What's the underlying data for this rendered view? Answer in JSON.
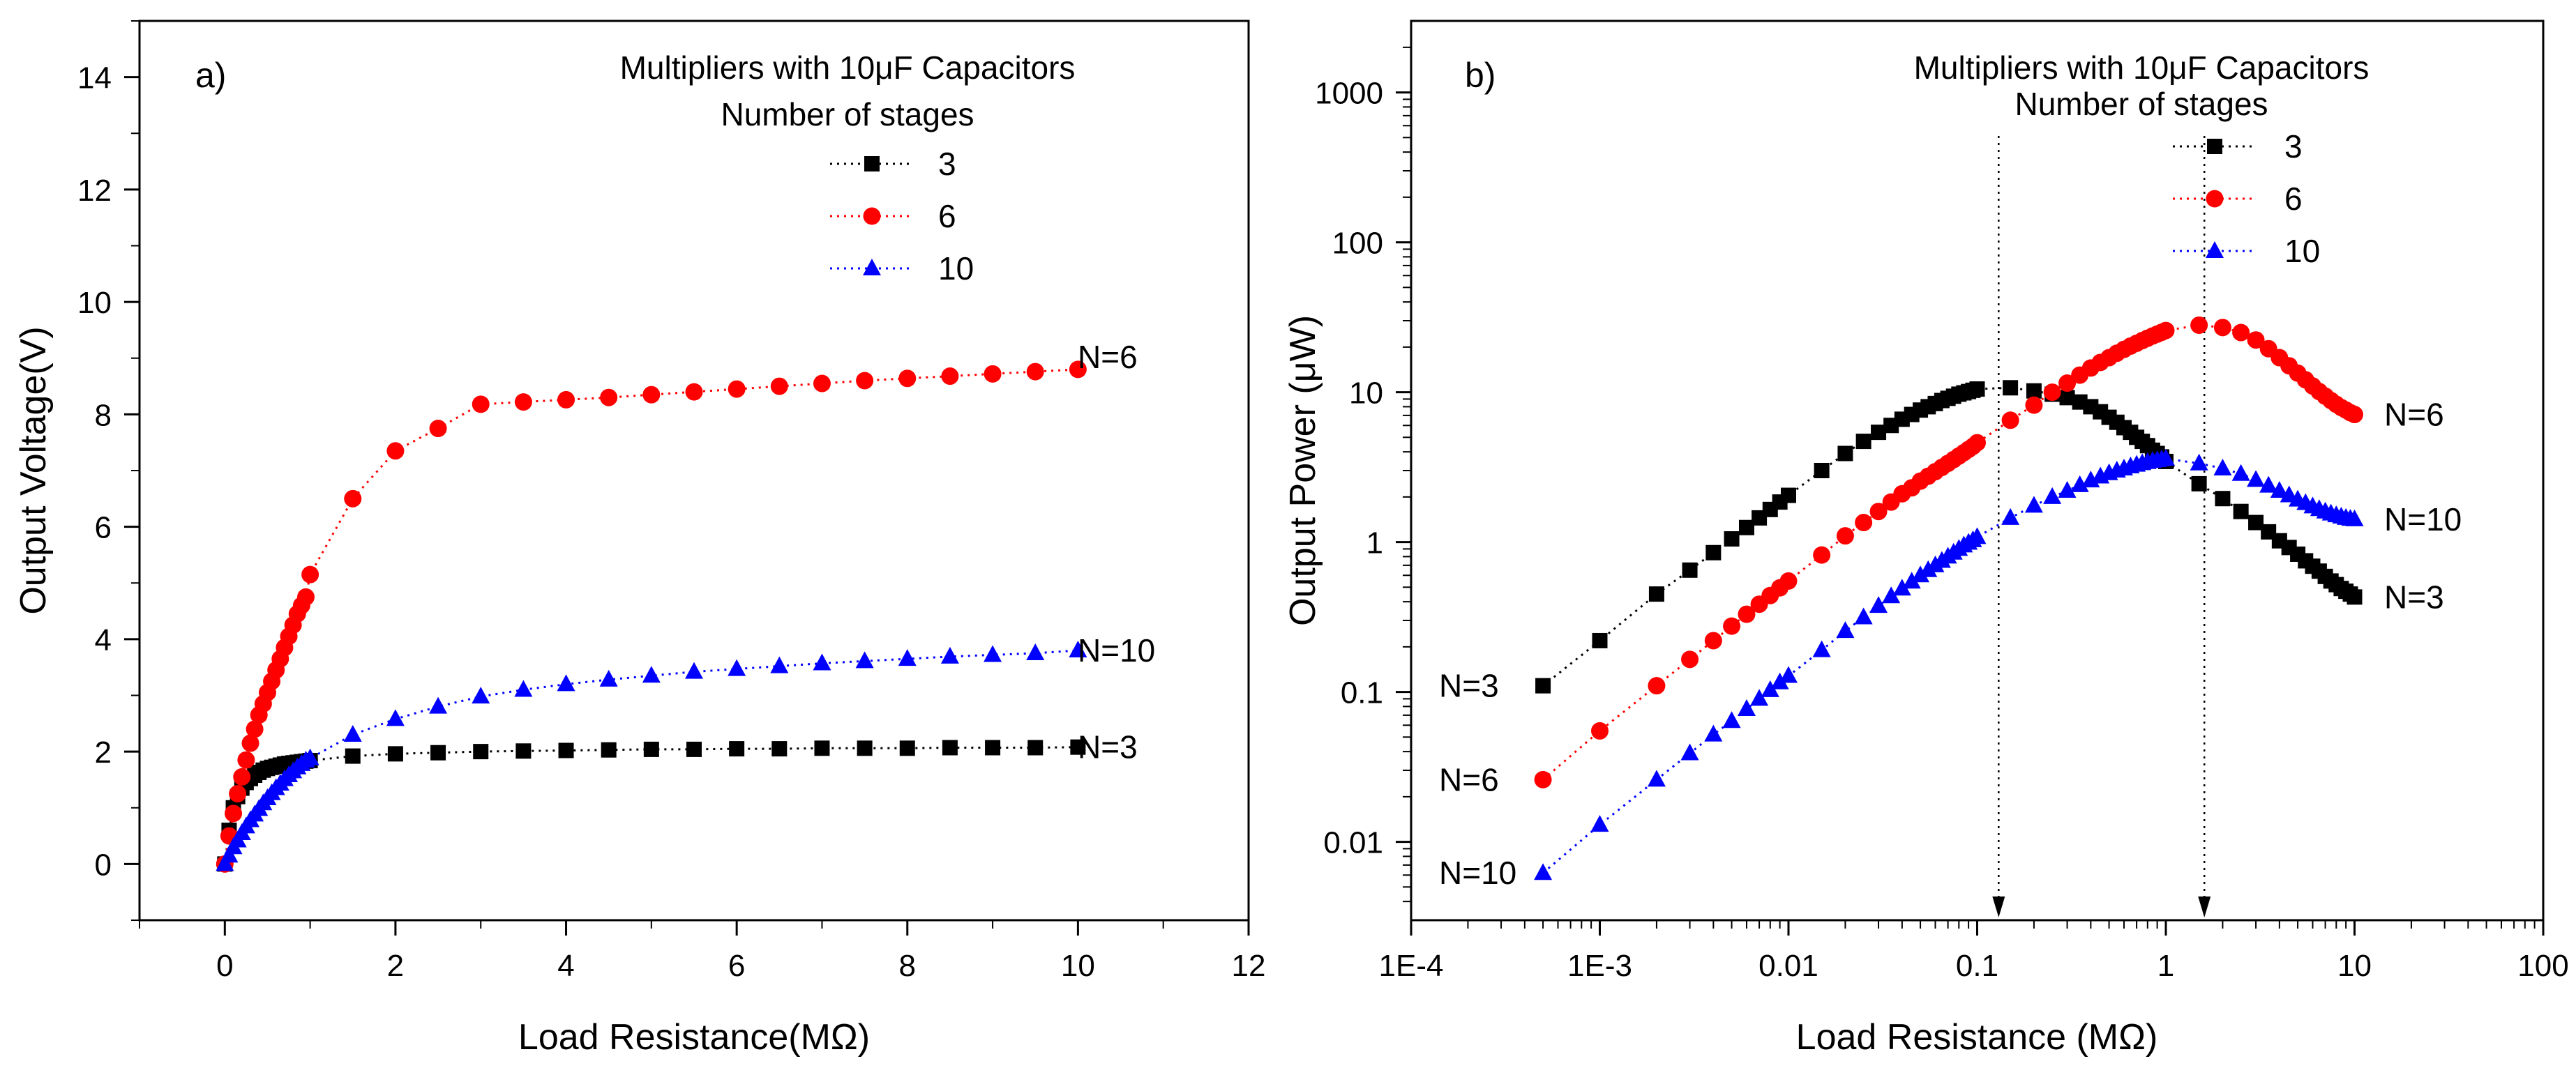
{
  "colors": {
    "black": "#000000",
    "red": "#ff0000",
    "blue": "#0000ff"
  },
  "chart_data": [
    {
      "type": "line",
      "panel_label": "a)",
      "title": "Multipliers with 10μF Capacitors",
      "legend_title": "Number of stages",
      "legend_position": "top-right",
      "xlabel": "Load Resistance(MΩ)",
      "ylabel": "Output Voltage(V)",
      "xlim": [
        -1,
        12
      ],
      "ylim": [
        -1,
        15
      ],
      "x_scale": "linear",
      "y_scale": "linear",
      "x_ticks": [
        0,
        2,
        4,
        6,
        8,
        10,
        12
      ],
      "x_tick_labels": [
        "0",
        "2",
        "4",
        "6",
        "8",
        "10",
        "12"
      ],
      "y_ticks": [
        0,
        2,
        4,
        6,
        8,
        10,
        12,
        14
      ],
      "y_tick_labels": [
        "0",
        "2",
        "4",
        "6",
        "8",
        "10",
        "12",
        "14"
      ],
      "series": [
        {
          "name": "3",
          "end_label": "N=3",
          "marker": "square",
          "color": "#000000",
          "x": [
            0,
            0.05,
            0.1,
            0.15,
            0.2,
            0.25,
            0.3,
            0.35,
            0.4,
            0.45,
            0.5,
            0.55,
            0.6,
            0.65,
            0.7,
            0.75,
            0.8,
            0.85,
            0.9,
            0.95,
            1.0,
            1.5,
            2,
            2.5,
            3,
            3.5,
            4,
            4.5,
            5,
            5.5,
            6,
            6.5,
            7,
            7.5,
            8,
            8.5,
            9,
            9.5,
            10
          ],
          "y": [
            0,
            0.6,
            1.0,
            1.2,
            1.35,
            1.45,
            1.52,
            1.58,
            1.63,
            1.67,
            1.7,
            1.72,
            1.74,
            1.76,
            1.78,
            1.79,
            1.8,
            1.81,
            1.82,
            1.83,
            1.84,
            1.92,
            1.96,
            1.98,
            2.0,
            2.01,
            2.02,
            2.03,
            2.04,
            2.04,
            2.05,
            2.05,
            2.06,
            2.06,
            2.06,
            2.07,
            2.07,
            2.07,
            2.08
          ]
        },
        {
          "name": "6",
          "end_label": "N=6",
          "marker": "circle",
          "color": "#ff0000",
          "x": [
            0,
            0.05,
            0.1,
            0.15,
            0.2,
            0.25,
            0.3,
            0.35,
            0.4,
            0.45,
            0.5,
            0.55,
            0.6,
            0.65,
            0.7,
            0.75,
            0.8,
            0.85,
            0.9,
            0.95,
            1.0,
            1.5,
            2,
            2.5,
            3,
            3.5,
            4,
            4.5,
            5,
            5.5,
            6,
            6.5,
            7,
            7.5,
            8,
            8.5,
            9,
            9.5,
            10
          ],
          "y": [
            0,
            0.5,
            0.9,
            1.25,
            1.55,
            1.85,
            2.15,
            2.4,
            2.65,
            2.85,
            3.05,
            3.25,
            3.45,
            3.65,
            3.85,
            4.05,
            4.25,
            4.45,
            4.6,
            4.75,
            5.15,
            6.5,
            7.35,
            7.75,
            8.18,
            8.22,
            8.26,
            8.3,
            8.35,
            8.4,
            8.45,
            8.5,
            8.55,
            8.6,
            8.64,
            8.68,
            8.72,
            8.76,
            8.8
          ]
        },
        {
          "name": "10",
          "end_label": "N=10",
          "marker": "triangle",
          "color": "#0000ff",
          "x": [
            0,
            0.05,
            0.1,
            0.15,
            0.2,
            0.25,
            0.3,
            0.35,
            0.4,
            0.45,
            0.5,
            0.55,
            0.6,
            0.65,
            0.7,
            0.75,
            0.8,
            0.85,
            0.9,
            0.95,
            1.0,
            1.5,
            2,
            2.5,
            3,
            3.5,
            4,
            4.5,
            5,
            5.5,
            6,
            6.5,
            7,
            7.5,
            8,
            8.5,
            9,
            9.5,
            10
          ],
          "y": [
            0,
            0.15,
            0.3,
            0.42,
            0.55,
            0.67,
            0.78,
            0.88,
            0.98,
            1.08,
            1.17,
            1.26,
            1.35,
            1.43,
            1.51,
            1.58,
            1.65,
            1.72,
            1.78,
            1.84,
            1.88,
            2.3,
            2.58,
            2.8,
            2.98,
            3.1,
            3.2,
            3.28,
            3.35,
            3.42,
            3.47,
            3.52,
            3.57,
            3.61,
            3.65,
            3.69,
            3.72,
            3.75,
            3.8
          ]
        }
      ]
    },
    {
      "type": "line",
      "panel_label": "b)",
      "title": "Multipliers with 10μF Capacitors",
      "legend_title": "Number of stages",
      "legend_position": "top-right",
      "xlabel": "Load Resistance (MΩ)",
      "ylabel": "Output Power (μW)",
      "xlim": [
        0.0001,
        100
      ],
      "ylim": [
        0.003,
        3000
      ],
      "x_scale": "log",
      "y_scale": "log",
      "x_ticks": [
        0.0001,
        0.001,
        0.01,
        0.1,
        1,
        10,
        100
      ],
      "x_tick_labels": [
        "1E-4",
        "1E-3",
        "0.01",
        "0.1",
        "1",
        "10",
        "100"
      ],
      "y_ticks": [
        0.01,
        0.1,
        1,
        10,
        100,
        1000
      ],
      "y_tick_labels": [
        "0.01",
        "0.1",
        "1",
        "10",
        "100",
        "1000"
      ],
      "annotation_arrows_x": [
        0.13,
        1.6
      ],
      "series": [
        {
          "name": "3",
          "end_label": "N=3",
          "start_label": "N=3",
          "marker": "square",
          "color": "#000000",
          "x": [
            0.0005,
            0.001,
            0.002,
            0.003,
            0.004,
            0.005,
            0.006,
            0.007,
            0.008,
            0.009,
            0.01,
            0.015,
            0.02,
            0.025,
            0.03,
            0.035,
            0.04,
            0.045,
            0.05,
            0.055,
            0.06,
            0.065,
            0.07,
            0.075,
            0.08,
            0.085,
            0.09,
            0.095,
            0.1,
            0.15,
            0.2,
            0.25,
            0.3,
            0.35,
            0.4,
            0.45,
            0.5,
            0.55,
            0.6,
            0.65,
            0.7,
            0.75,
            0.8,
            0.85,
            0.9,
            0.95,
            1.0,
            1.5,
            2,
            2.5,
            3,
            3.5,
            4,
            4.5,
            5,
            5.5,
            6,
            6.5,
            7,
            7.5,
            8,
            8.5,
            9,
            9.5,
            10
          ],
          "y": [
            0.11,
            0.22,
            0.45,
            0.65,
            0.85,
            1.05,
            1.25,
            1.45,
            1.65,
            1.85,
            2.05,
            3.0,
            3.9,
            4.7,
            5.4,
            6.0,
            6.6,
            7.1,
            7.6,
            8.0,
            8.4,
            8.8,
            9.1,
            9.4,
            9.7,
            9.9,
            10.1,
            10.3,
            10.5,
            10.7,
            10.2,
            9.7,
            9.2,
            8.6,
            8.0,
            7.4,
            6.8,
            6.3,
            5.8,
            5.4,
            5.0,
            4.7,
            4.4,
            4.1,
            3.9,
            3.7,
            3.45,
            2.45,
            1.95,
            1.6,
            1.35,
            1.17,
            1.02,
            0.92,
            0.83,
            0.75,
            0.69,
            0.64,
            0.59,
            0.55,
            0.52,
            0.49,
            0.47,
            0.45,
            0.43
          ]
        },
        {
          "name": "6",
          "end_label": "N=6",
          "start_label": "N=6",
          "marker": "circle",
          "color": "#ff0000",
          "x": [
            0.0005,
            0.001,
            0.002,
            0.003,
            0.004,
            0.005,
            0.006,
            0.007,
            0.008,
            0.009,
            0.01,
            0.015,
            0.02,
            0.025,
            0.03,
            0.035,
            0.04,
            0.045,
            0.05,
            0.055,
            0.06,
            0.065,
            0.07,
            0.075,
            0.08,
            0.085,
            0.09,
            0.095,
            0.1,
            0.15,
            0.2,
            0.25,
            0.3,
            0.35,
            0.4,
            0.45,
            0.5,
            0.55,
            0.6,
            0.65,
            0.7,
            0.75,
            0.8,
            0.85,
            0.9,
            0.95,
            1.0,
            1.5,
            2,
            2.5,
            3,
            3.5,
            4,
            4.5,
            5,
            5.5,
            6,
            6.5,
            7,
            7.5,
            8,
            8.5,
            9,
            9.5,
            10
          ],
          "y": [
            0.026,
            0.055,
            0.11,
            0.165,
            0.22,
            0.275,
            0.33,
            0.385,
            0.44,
            0.495,
            0.55,
            0.82,
            1.1,
            1.35,
            1.6,
            1.85,
            2.1,
            2.3,
            2.55,
            2.75,
            2.95,
            3.15,
            3.35,
            3.55,
            3.75,
            3.95,
            4.15,
            4.35,
            4.6,
            6.5,
            8.2,
            10.0,
            11.5,
            13.0,
            14.5,
            15.8,
            17.0,
            18.2,
            19.3,
            20.3,
            21.2,
            22.1,
            22.9,
            23.7,
            24.4,
            25.1,
            25.8,
            28.0,
            27.0,
            25.0,
            22.3,
            19.5,
            17.0,
            15.0,
            13.4,
            12.1,
            11.0,
            10.1,
            9.4,
            8.8,
            8.3,
            7.9,
            7.6,
            7.3,
            7.1
          ]
        },
        {
          "name": "10",
          "end_label": "N=10",
          "start_label": "N=10",
          "marker": "triangle",
          "color": "#0000ff",
          "x": [
            0.0005,
            0.001,
            0.002,
            0.003,
            0.004,
            0.005,
            0.006,
            0.007,
            0.008,
            0.009,
            0.01,
            0.015,
            0.02,
            0.025,
            0.03,
            0.035,
            0.04,
            0.045,
            0.05,
            0.055,
            0.06,
            0.065,
            0.07,
            0.075,
            0.08,
            0.085,
            0.09,
            0.095,
            0.1,
            0.15,
            0.2,
            0.25,
            0.3,
            0.35,
            0.4,
            0.45,
            0.5,
            0.55,
            0.6,
            0.65,
            0.7,
            0.75,
            0.8,
            0.85,
            0.9,
            0.95,
            1.0,
            1.5,
            2,
            2.5,
            3,
            3.5,
            4,
            4.5,
            5,
            5.5,
            6,
            6.5,
            7,
            7.5,
            8,
            8.5,
            9,
            9.5,
            10
          ],
          "y": [
            0.0062,
            0.013,
            0.026,
            0.039,
            0.052,
            0.064,
            0.077,
            0.09,
            0.103,
            0.116,
            0.128,
            0.19,
            0.255,
            0.315,
            0.375,
            0.435,
            0.49,
            0.545,
            0.6,
            0.65,
            0.7,
            0.75,
            0.8,
            0.85,
            0.9,
            0.95,
            0.99,
            1.03,
            1.08,
            1.45,
            1.75,
            2.0,
            2.2,
            2.4,
            2.58,
            2.74,
            2.88,
            3.0,
            3.1,
            3.2,
            3.28,
            3.36,
            3.42,
            3.48,
            3.52,
            3.56,
            3.6,
            3.35,
            3.1,
            2.85,
            2.6,
            2.38,
            2.2,
            2.05,
            1.92,
            1.82,
            1.73,
            1.66,
            1.6,
            1.55,
            1.51,
            1.48,
            1.45,
            1.43,
            1.42
          ]
        }
      ]
    }
  ]
}
